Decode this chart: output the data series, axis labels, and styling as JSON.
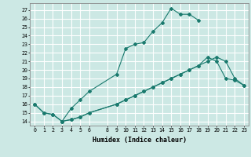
{
  "xlabel": "Humidex (Indice chaleur)",
  "bg_color": "#cce8e4",
  "grid_color": "#ffffff",
  "line_color": "#1a7a6e",
  "xlim": [
    -0.5,
    23.5
  ],
  "ylim": [
    13.5,
    27.8
  ],
  "xticks": [
    0,
    1,
    2,
    3,
    4,
    5,
    6,
    8,
    9,
    10,
    11,
    12,
    13,
    14,
    15,
    16,
    17,
    18,
    19,
    20,
    21,
    22,
    23
  ],
  "yticks": [
    14,
    15,
    16,
    17,
    18,
    19,
    20,
    21,
    22,
    23,
    24,
    25,
    26,
    27
  ],
  "series1_x": [
    0,
    1,
    2,
    3,
    4,
    5,
    6,
    9,
    10,
    11,
    12,
    13,
    14,
    15,
    16,
    17,
    18
  ],
  "series1_y": [
    16,
    15,
    14.8,
    14,
    15.5,
    16.5,
    17.5,
    19.5,
    22.5,
    23,
    23.2,
    24.5,
    25.5,
    27.2,
    26.5,
    26.5,
    25.8
  ],
  "series2_x": [
    3,
    4,
    5,
    6,
    9,
    10,
    11,
    12,
    13,
    14,
    15,
    16,
    17,
    18,
    19,
    20,
    21,
    22,
    23
  ],
  "series2_y": [
    14,
    14.2,
    14.5,
    15,
    16,
    16.5,
    17,
    17.5,
    18,
    18.5,
    19,
    19.5,
    20,
    20.5,
    21.5,
    21,
    19,
    18.8,
    18.2
  ],
  "series3_x": [
    0,
    1,
    2,
    3,
    4,
    5,
    6,
    9,
    10,
    11,
    12,
    13,
    14,
    15,
    16,
    17,
    18,
    19,
    20,
    21,
    22,
    23
  ],
  "series3_y": [
    16,
    15,
    14.8,
    14,
    14.2,
    14.5,
    15,
    16,
    16.5,
    17,
    17.5,
    18,
    18.5,
    19,
    19.5,
    20,
    20.5,
    21,
    21.5,
    21,
    19,
    18.2
  ]
}
